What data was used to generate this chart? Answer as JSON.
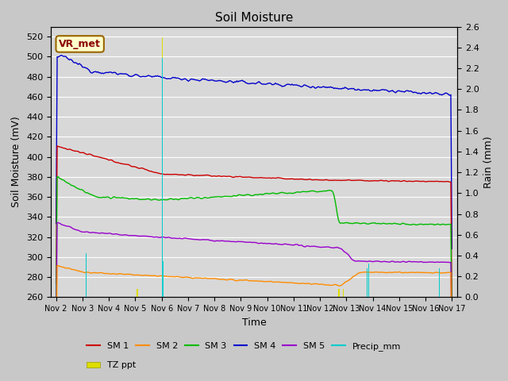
{
  "title": "Soil Moisture",
  "xlabel": "Time",
  "ylabel_left": "Soil Moisture (mV)",
  "ylabel_right": "Rain (mm)",
  "ylim_left": [
    260,
    530
  ],
  "ylim_right": [
    0.0,
    2.6
  ],
  "fig_bg_color": "#c8c8c8",
  "plot_bg_color": "#d8d8d8",
  "annotation_text": "VR_met",
  "annotation_color": "#8B0000",
  "annotation_bg": "#ffffcc",
  "annotation_border": "#996600",
  "x_tick_labels": [
    "Nov 2",
    "Nov 3",
    "Nov 4",
    "Nov 5",
    "Nov 6",
    "Nov 7",
    "Nov 8",
    "Nov 9",
    "Nov 10",
    "Nov 11",
    "Nov 12",
    "Nov 13",
    "Nov 14",
    "Nov 15",
    "Nov 16",
    "Nov 17"
  ],
  "sm1_color": "#cc0000",
  "sm2_color": "#ff8c00",
  "sm3_color": "#00bb00",
  "sm4_color": "#0000cc",
  "sm5_color": "#9900cc",
  "precip_color": "#00cccc",
  "tzppt_color": "#dddd00",
  "grid_color": "#ffffff",
  "precip_days": [
    1.15,
    4.03,
    4.07,
    11.78,
    11.85,
    14.52
  ],
  "precip_vals": [
    0.42,
    2.3,
    0.35,
    0.28,
    0.32,
    0.28
  ],
  "tzppt_days": [
    3.08,
    4.02,
    10.72,
    10.88
  ],
  "tzppt_vals": [
    0.08,
    2.5,
    0.08,
    0.08
  ]
}
